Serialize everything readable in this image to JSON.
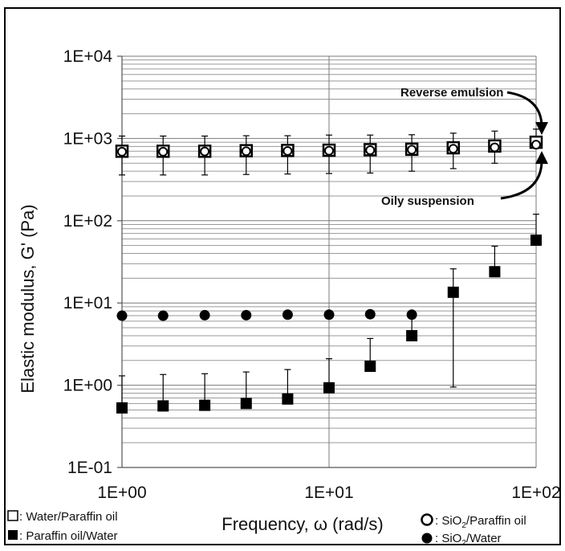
{
  "chart_data": {
    "type": "scatter",
    "title": "",
    "xlabel": "Frequency, ω (rad/s)",
    "ylabel": "Elastic modulus, G' (Pa)",
    "xscale": "log",
    "yscale": "log",
    "xlim": [
      1,
      100
    ],
    "ylim": [
      0.1,
      10000
    ],
    "grid": "horizontal major and minor, vertical at decades",
    "x_ticks": [
      "1E+00",
      "1E+01",
      "1E+02"
    ],
    "y_ticks": [
      "1E-01",
      "1E+00",
      "1E+01",
      "1E+02",
      "1E+03",
      "1E+04"
    ],
    "legend_placement": "below plot, left and right",
    "series": [
      {
        "name": "Water/Paraffin oil",
        "marker": "open-square",
        "x": [
          1.0,
          1.58,
          2.51,
          3.98,
          6.31,
          10.0,
          15.8,
          25.1,
          39.8,
          63.1,
          100.0
        ],
        "y": [
          700,
          700,
          700,
          710,
          715,
          720,
          730,
          740,
          770,
          810,
          900
        ],
        "err_low": [
          360,
          360,
          360,
          365,
          370,
          375,
          380,
          400,
          430,
          500,
          780
        ],
        "err_high": [
          1070,
          1070,
          1070,
          1080,
          1080,
          1100,
          1100,
          1110,
          1160,
          1230,
          1300
        ]
      },
      {
        "name": "SiO₂/Paraffin oil",
        "label_main": "SiO",
        "label_sub": "2",
        "label_rest": "/Paraffin oil",
        "marker": "open-circle",
        "x": [
          1.0,
          1.58,
          2.51,
          3.98,
          6.31,
          10.0,
          15.8,
          25.1,
          39.8,
          63.1,
          100.0
        ],
        "y": [
          690,
          690,
          695,
          700,
          705,
          710,
          720,
          730,
          750,
          780,
          840
        ]
      },
      {
        "name": "Paraffin oil/Water",
        "marker": "filled-square",
        "x": [
          1.0,
          1.58,
          2.51,
          3.98,
          6.31,
          10.0,
          15.8,
          25.1,
          39.8,
          63.1,
          100.0
        ],
        "y": [
          0.53,
          0.56,
          0.57,
          0.6,
          0.68,
          0.93,
          1.7,
          4.0,
          13.5,
          24.0,
          58.0
        ],
        "err_high": [
          1.3,
          1.35,
          1.38,
          1.45,
          1.55,
          2.1,
          3.7,
          7.5,
          26.0,
          49.0,
          120.0
        ],
        "err_low": [
          null,
          null,
          null,
          null,
          null,
          null,
          null,
          null,
          0.95,
          null,
          null
        ]
      },
      {
        "name": "SiO₂/Water",
        "label_main": "SiO",
        "label_sub": "2",
        "label_rest": "/Water",
        "marker": "filled-circle",
        "x": [
          1.0,
          1.58,
          2.51,
          3.98,
          6.31,
          10.0,
          15.8,
          25.1
        ],
        "y": [
          7.0,
          7.0,
          7.1,
          7.1,
          7.2,
          7.2,
          7.3,
          7.2
        ]
      }
    ],
    "annotations": [
      {
        "text": "Reverse emulsion",
        "x": 100,
        "y": 900
      },
      {
        "text": "Oily suspension",
        "x": 100,
        "y": 840
      }
    ],
    "legend_texts": {
      "water_paraffin": ": Water/Paraffin oil",
      "paraffin_water": ": Paraffin oil/Water"
    }
  }
}
